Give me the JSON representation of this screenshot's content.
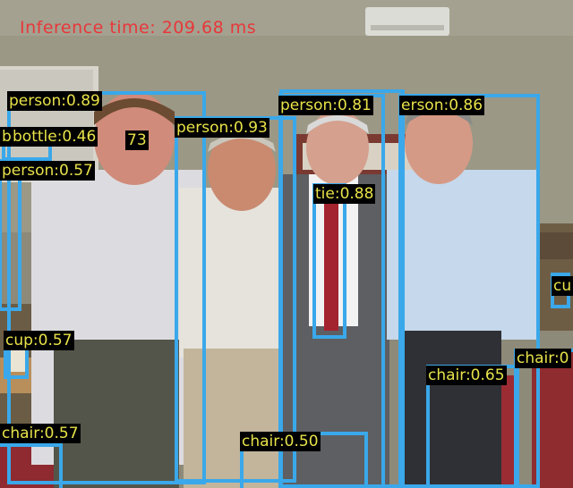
{
  "inference_text": "Inference time: 209.68 ms",
  "colors": {
    "box": "#3aa8ea",
    "label_text": "#e8e24a",
    "label_bg": "#000000",
    "inference_text": "#e8373a"
  },
  "detections": [
    {
      "label": "person:0.89"
    },
    {
      "label": "person:0.93"
    },
    {
      "label": "person:0.81"
    },
    {
      "label": "erson:0.86"
    },
    {
      "label": "bottle:0.46"
    },
    {
      "label": "person:0.57"
    },
    {
      "label": "tie:0.88"
    },
    {
      "label": "cup:0.57"
    },
    {
      "label": "chair:0.57"
    },
    {
      "label": "chair:0.50"
    },
    {
      "label": "chair:0.65"
    },
    {
      "label": "chair:0"
    },
    {
      "label": "cu"
    },
    {
      "label": "73"
    },
    {
      "label": "b"
    }
  ]
}
